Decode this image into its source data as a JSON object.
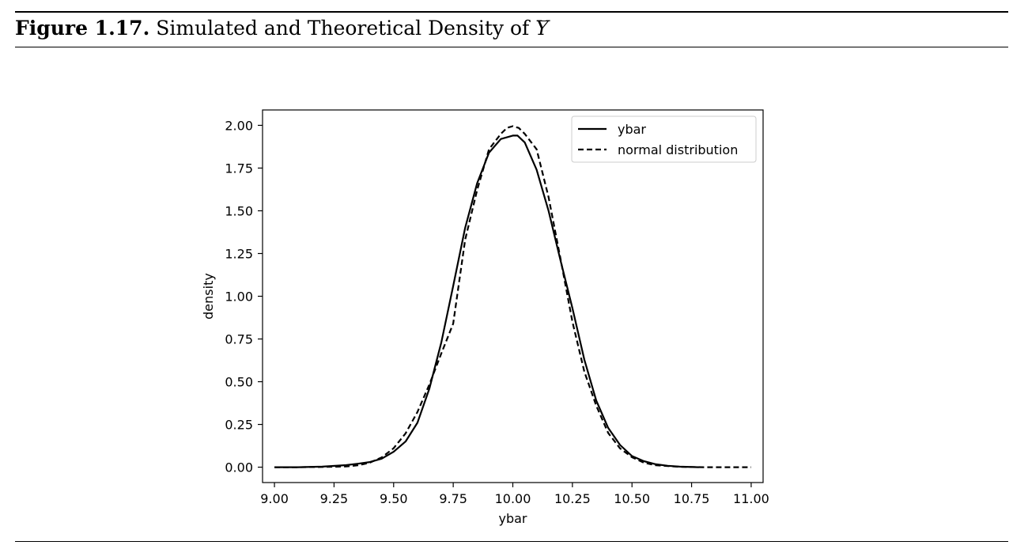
{
  "caption": {
    "label": "Figure 1.17.",
    "text": "Simulated and Theoretical Density of",
    "symbol": "Y"
  },
  "chart_data": {
    "type": "line",
    "xlabel": "ybar",
    "ylabel": "density",
    "xlim": [
      8.95,
      11.05
    ],
    "ylim": [
      -0.09,
      2.09
    ],
    "xticks": [
      9.0,
      9.25,
      9.5,
      9.75,
      10.0,
      10.25,
      10.5,
      10.75,
      11.0
    ],
    "xtick_labels": [
      "9.00",
      "9.25",
      "9.50",
      "9.75",
      "10.00",
      "10.25",
      "10.50",
      "10.75",
      "11.00"
    ],
    "yticks": [
      0.0,
      0.25,
      0.5,
      0.75,
      1.0,
      1.25,
      1.5,
      1.75,
      2.0
    ],
    "ytick_labels": [
      "0.00",
      "0.25",
      "0.50",
      "0.75",
      "1.00",
      "1.25",
      "1.50",
      "1.75",
      "2.00"
    ],
    "grid": false,
    "legend_position": "top-right",
    "series": [
      {
        "name": "ybar",
        "style": "solid",
        "x": [
          9.0,
          9.1,
          9.2,
          9.3,
          9.35,
          9.4,
          9.45,
          9.5,
          9.55,
          9.6,
          9.65,
          9.7,
          9.75,
          9.8,
          9.85,
          9.9,
          9.95,
          10.0,
          10.02,
          10.05,
          10.1,
          10.15,
          10.2,
          10.25,
          10.3,
          10.35,
          10.4,
          10.45,
          10.5,
          10.55,
          10.6,
          10.65,
          10.7,
          10.78
        ],
        "y": [
          0.0,
          0.0,
          0.003,
          0.012,
          0.02,
          0.03,
          0.05,
          0.09,
          0.15,
          0.26,
          0.46,
          0.73,
          1.06,
          1.4,
          1.66,
          1.84,
          1.92,
          1.94,
          1.94,
          1.9,
          1.74,
          1.5,
          1.21,
          0.93,
          0.63,
          0.39,
          0.23,
          0.13,
          0.065,
          0.035,
          0.017,
          0.008,
          0.003,
          0.0
        ]
      },
      {
        "name": "normal distribution",
        "style": "dashed",
        "x": [
          9.0,
          9.1,
          9.2,
          9.3,
          9.35,
          9.4,
          9.45,
          9.5,
          9.55,
          9.6,
          9.65,
          9.7,
          9.75,
          9.8,
          9.85,
          9.9,
          9.95,
          9.975,
          10.0,
          10.025,
          10.05,
          10.1,
          10.15,
          10.2,
          10.25,
          10.3,
          10.35,
          10.4,
          10.45,
          10.5,
          10.55,
          10.6,
          10.7,
          10.8,
          10.9,
          11.0
        ],
        "y": [
          0.0,
          0.0,
          0.001,
          0.004,
          0.011,
          0.026,
          0.057,
          0.111,
          0.198,
          0.323,
          0.484,
          0.666,
          0.84,
          1.33,
          1.62,
          1.86,
          1.95,
          1.985,
          1.995,
          1.985,
          1.95,
          1.86,
          1.58,
          1.22,
          0.85,
          0.56,
          0.36,
          0.2,
          0.11,
          0.058,
          0.026,
          0.011,
          0.002,
          0.0,
          0.0,
          0.0
        ]
      }
    ]
  }
}
